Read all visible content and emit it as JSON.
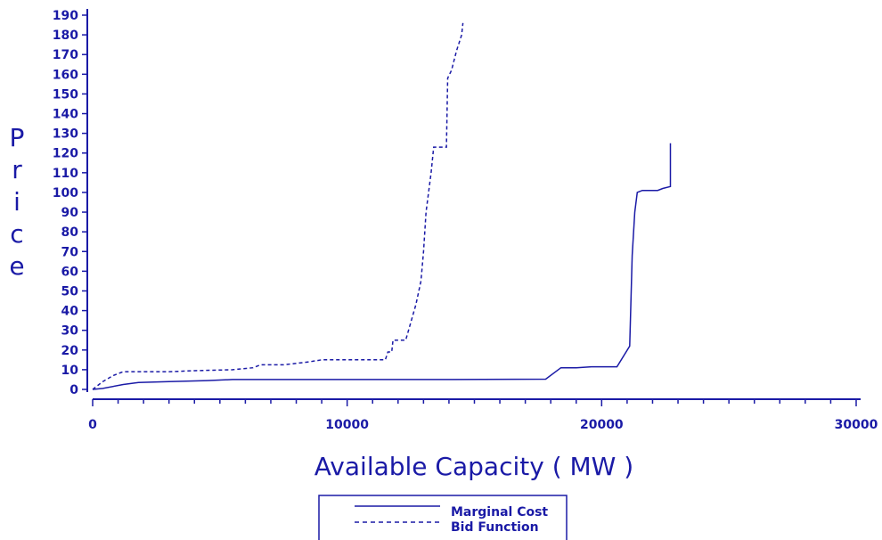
{
  "chart_data": {
    "type": "line",
    "xlabel": "Available Capacity ( MW )",
    "ylabel": "Price",
    "xlim": [
      0,
      30000
    ],
    "ylim": [
      0,
      190
    ],
    "xticks": [
      0,
      10000,
      20000,
      30000
    ],
    "yticks": [
      0,
      10,
      20,
      30,
      40,
      50,
      60,
      70,
      80,
      90,
      100,
      110,
      120,
      130,
      140,
      150,
      160,
      170,
      180,
      190
    ],
    "grid": false,
    "legend_placement": "bottom-center",
    "color": "#1a1aa6",
    "series": [
      {
        "name": "Marginal Cost",
        "style": "solid",
        "points": [
          [
            0,
            0
          ],
          [
            400,
            0.5
          ],
          [
            1200,
            2.5
          ],
          [
            1800,
            3.5
          ],
          [
            3000,
            4
          ],
          [
            4500,
            4.5
          ],
          [
            5500,
            5
          ],
          [
            11500,
            5
          ],
          [
            13500,
            5
          ],
          [
            17800,
            5.2
          ],
          [
            18400,
            11
          ],
          [
            19000,
            11
          ],
          [
            19600,
            11.5
          ],
          [
            20600,
            11.5
          ],
          [
            21100,
            22
          ],
          [
            21200,
            68
          ],
          [
            21300,
            90
          ],
          [
            21400,
            100
          ],
          [
            21600,
            101
          ],
          [
            22200,
            101
          ],
          [
            22400,
            102
          ],
          [
            22700,
            103
          ],
          [
            22700,
            125
          ]
        ]
      },
      {
        "name": "Bid Function",
        "style": "dashed",
        "points": [
          [
            0,
            0
          ],
          [
            400,
            4
          ],
          [
            800,
            7
          ],
          [
            1200,
            9
          ],
          [
            3000,
            9
          ],
          [
            4000,
            9.5
          ],
          [
            5500,
            10
          ],
          [
            6300,
            11
          ],
          [
            6600,
            12.5
          ],
          [
            7500,
            12.5
          ],
          [
            8500,
            14
          ],
          [
            9000,
            15
          ],
          [
            11200,
            15
          ],
          [
            11500,
            15
          ],
          [
            11600,
            19
          ],
          [
            11750,
            19
          ],
          [
            11800,
            25
          ],
          [
            12300,
            25
          ],
          [
            12700,
            43
          ],
          [
            12900,
            55
          ],
          [
            13000,
            70
          ],
          [
            13100,
            90
          ],
          [
            13300,
            110
          ],
          [
            13400,
            123
          ],
          [
            13700,
            123
          ],
          [
            13900,
            123
          ],
          [
            13950,
            158
          ],
          [
            14100,
            162
          ],
          [
            14300,
            172
          ],
          [
            14500,
            180
          ],
          [
            14550,
            186
          ]
        ]
      }
    ]
  }
}
